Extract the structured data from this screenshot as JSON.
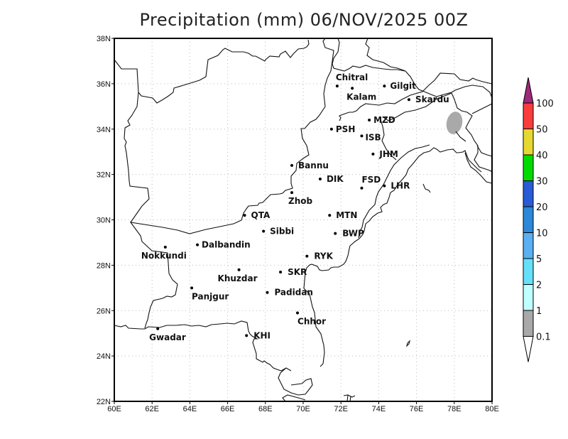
{
  "title": "Precipitation (mm) 06/NOV/2025 00Z",
  "map": {
    "lon_ticks": [
      "60E",
      "62E",
      "64E",
      "66E",
      "68E",
      "70E",
      "72E",
      "74E",
      "76E",
      "78E",
      "80E"
    ],
    "lat_ticks": [
      "22N",
      "24N",
      "26N",
      "28N",
      "30N",
      "32N",
      "34N",
      "36N",
      "38N"
    ],
    "cities": [
      {
        "name": "Chitral",
        "lon": 71.8,
        "lat": 35.9
      },
      {
        "name": "Kalam",
        "lon": 72.6,
        "lat": 35.8
      },
      {
        "name": "Gilgit",
        "lon": 74.3,
        "lat": 35.9
      },
      {
        "name": "Skardu",
        "lon": 75.6,
        "lat": 35.3
      },
      {
        "name": "MZD",
        "lon": 73.5,
        "lat": 34.4
      },
      {
        "name": "PSH",
        "lon": 71.5,
        "lat": 34.0
      },
      {
        "name": "ISB",
        "lon": 73.1,
        "lat": 33.7
      },
      {
        "name": "JHM",
        "lon": 73.7,
        "lat": 32.9
      },
      {
        "name": "Bannu",
        "lon": 69.4,
        "lat": 32.4
      },
      {
        "name": "DIK",
        "lon": 70.9,
        "lat": 31.8
      },
      {
        "name": "FSD",
        "lon": 73.1,
        "lat": 31.4
      },
      {
        "name": "LHR",
        "lon": 74.3,
        "lat": 31.5
      },
      {
        "name": "Zhob",
        "lon": 69.4,
        "lat": 31.2
      },
      {
        "name": "QTA",
        "lon": 66.9,
        "lat": 30.2
      },
      {
        "name": "MTN",
        "lon": 71.4,
        "lat": 30.2
      },
      {
        "name": "Sibbi",
        "lon": 67.9,
        "lat": 29.5
      },
      {
        "name": "BWP",
        "lon": 71.7,
        "lat": 29.4
      },
      {
        "name": "Dalbandin",
        "lon": 64.4,
        "lat": 28.9
      },
      {
        "name": "Nokkundi",
        "lon": 62.7,
        "lat": 28.8
      },
      {
        "name": "RYK",
        "lon": 70.2,
        "lat": 28.4
      },
      {
        "name": "Khuzdar",
        "lon": 66.6,
        "lat": 27.8
      },
      {
        "name": "SKR",
        "lon": 68.8,
        "lat": 27.7
      },
      {
        "name": "Panjgur",
        "lon": 64.1,
        "lat": 27.0
      },
      {
        "name": "Padidan",
        "lon": 68.1,
        "lat": 26.8
      },
      {
        "name": "Chhor",
        "lon": 69.7,
        "lat": 25.9
      },
      {
        "name": "Gwadar",
        "lon": 62.3,
        "lat": 25.2
      },
      {
        "name": "KHI",
        "lon": 67.0,
        "lat": 24.9
      }
    ],
    "precip_areas": [
      {
        "label": "0.1-1 mm",
        "lon": 78.0,
        "lat": 34.3,
        "color": "#a9a9a9"
      }
    ]
  },
  "colorbar": {
    "levels": [
      "0.1",
      "1",
      "2",
      "5",
      "10",
      "20",
      "30",
      "40",
      "50",
      "100"
    ],
    "colors": [
      "#a9a9a9",
      "#c0ffff",
      "#66e0f8",
      "#5ab0f0",
      "#2e88d8",
      "#2a5bd6",
      "#00dc00",
      "#e6d832",
      "#fa3c3c",
      "#a0287a"
    ],
    "under_color": "#ffffff"
  },
  "chart_data": {
    "type": "heatmap",
    "title": "Precipitation (mm) 06/NOV/2025 00Z",
    "xlabel": "Longitude",
    "ylabel": "Latitude",
    "xlim": [
      60,
      80
    ],
    "ylim": [
      22,
      38
    ],
    "x_ticks": [
      "60E",
      "62E",
      "64E",
      "66E",
      "68E",
      "70E",
      "72E",
      "74E",
      "76E",
      "78E",
      "80E"
    ],
    "y_ticks": [
      "22N",
      "24N",
      "26N",
      "28N",
      "30N",
      "32N",
      "34N",
      "36N",
      "38N"
    ],
    "grid": true,
    "legend": {
      "position": "right",
      "type": "colorbar",
      "levels": [
        0.1,
        1,
        2,
        5,
        10,
        20,
        30,
        40,
        50,
        100
      ]
    },
    "features": [
      {
        "description": "light precipitation patch",
        "category": "0.1-1 mm",
        "center_lon": 78.0,
        "center_lat": 34.3
      }
    ]
  }
}
